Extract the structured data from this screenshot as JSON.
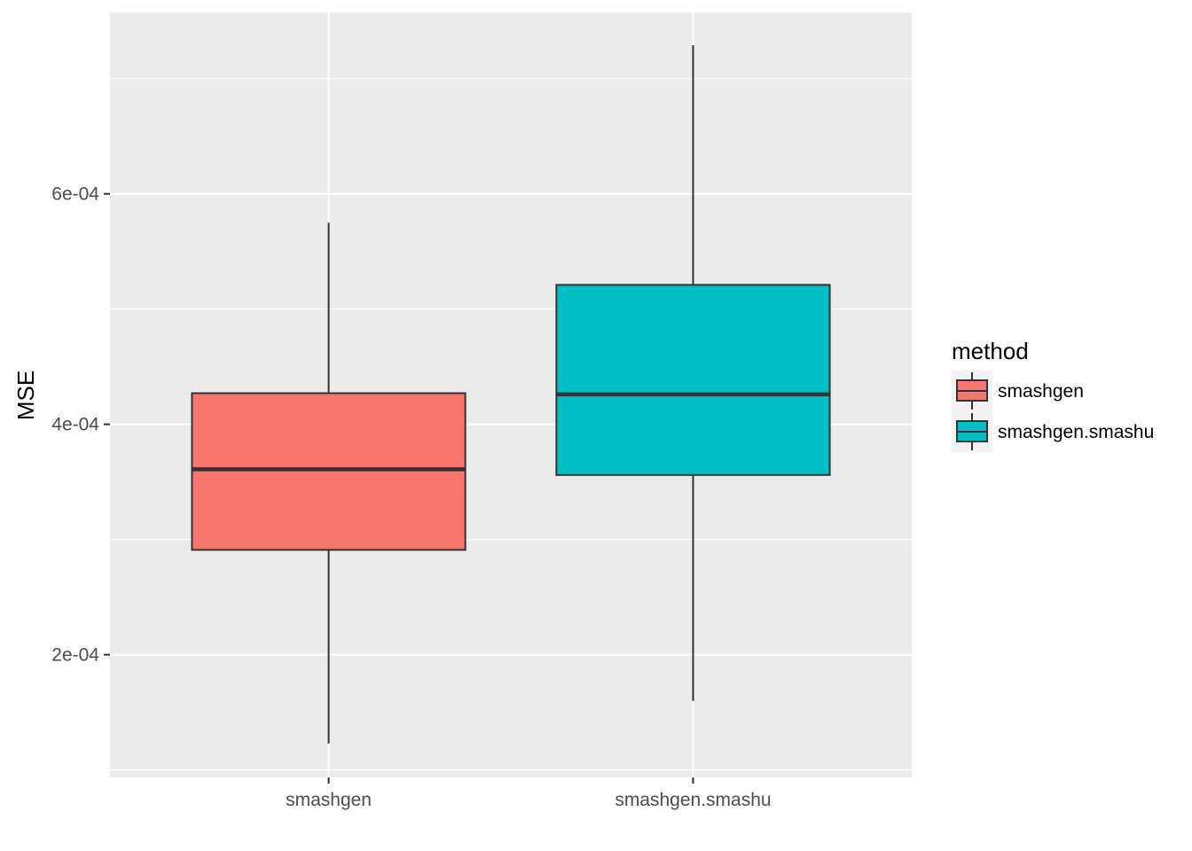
{
  "chart_data": {
    "type": "boxplot",
    "xlabel": "",
    "ylabel": "MSE",
    "ylim": [
      9.35e-05,
      0.0007575
    ],
    "y_ticks": [
      0.0002,
      0.0004,
      0.0006
    ],
    "y_tick_labels": [
      "2e-04",
      "4e-04",
      "6e-04"
    ],
    "y_minor_ticks": [
      0.0001,
      0.0003,
      0.0005,
      0.0007
    ],
    "categories": [
      "smashgen",
      "smashgen.smashu"
    ],
    "series": [
      {
        "name": "smashgen",
        "color": "#F8766D",
        "whisker_low": 0.000123,
        "q1": 0.000291,
        "median": 0.000361,
        "q3": 0.000427,
        "whisker_high": 0.000575
      },
      {
        "name": "smashgen.smashu",
        "color": "#00BFC4",
        "whisker_low": 0.00016,
        "q1": 0.000356,
        "median": 0.000426,
        "q3": 0.000521,
        "whisker_high": 0.000729
      }
    ],
    "grid": true,
    "legend": {
      "title": "method",
      "position": "right",
      "entries": [
        "smashgen",
        "smashgen.smashu"
      ]
    }
  }
}
